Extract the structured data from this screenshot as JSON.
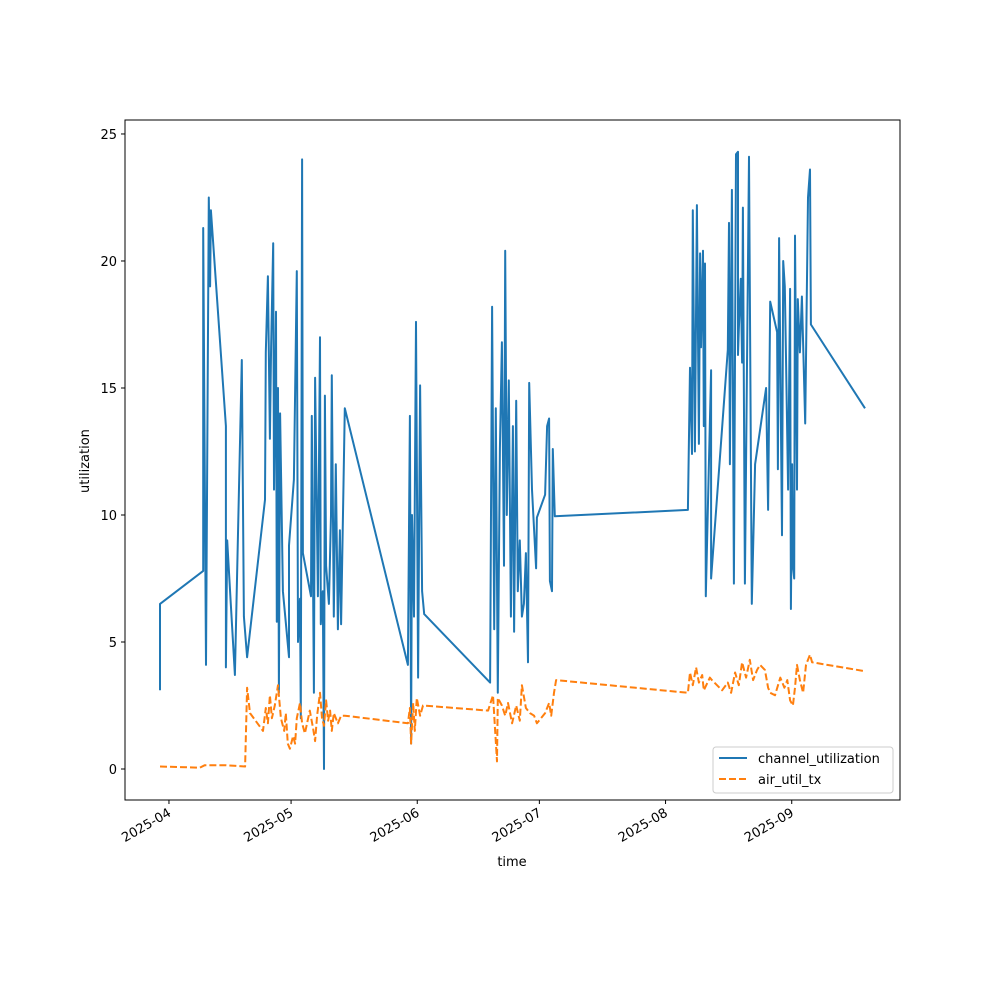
{
  "chart_data": {
    "type": "line",
    "title": "",
    "xlabel": "time",
    "ylabel": "utilization",
    "x_units": "days since 2025-04-01",
    "x_origin": "2025-04-01",
    "xlim": [
      -10.8,
      179.6
    ],
    "ylim": [
      -1.22,
      25.55
    ],
    "grid": false,
    "legend_position": "lower-right",
    "xticks": [
      {
        "label": "2025-04",
        "value": 0
      },
      {
        "label": "2025-05",
        "value": 30
      },
      {
        "label": "2025-06",
        "value": 61
      },
      {
        "label": "2025-07",
        "value": 91
      },
      {
        "label": "2025-08",
        "value": 122
      },
      {
        "label": "2025-09",
        "value": 153
      }
    ],
    "yticks": [
      {
        "label": "0",
        "value": 0
      },
      {
        "label": "5",
        "value": 5
      },
      {
        "label": "10",
        "value": 10
      },
      {
        "label": "15",
        "value": 15
      },
      {
        "label": "20",
        "value": 20
      },
      {
        "label": "25",
        "value": 25
      }
    ],
    "series": [
      {
        "name": "channel_utilization",
        "color": "#1f77b4",
        "style": "solid",
        "x": [
          -2.2,
          -2.2,
          8.4,
          8.4,
          9.1,
          9.8,
          10.1,
          10.3,
          14.0,
          14.0,
          14.3,
          15.2,
          16.2,
          17.9,
          18.4,
          19.2,
          23.6,
          23.8,
          24.3,
          24.8,
          25.1,
          25.6,
          25.8,
          26.3,
          26.5,
          26.8,
          27.0,
          27.3,
          28.0,
          29.5,
          29.5,
          30.7,
          31.4,
          31.7,
          32.2,
          32.4,
          32.7,
          32.9,
          34.9,
          35.1,
          35.6,
          35.9,
          36.6,
          37.1,
          37.3,
          37.8,
          38.1,
          38.3,
          38.6,
          39.3,
          39.8,
          40.0,
          40.5,
          41.0,
          41.5,
          42.0,
          42.3,
          43.2,
          58.7,
          59.2,
          59.5,
          59.7,
          60.2,
          60.7,
          61.2,
          61.7,
          62.2,
          62.7,
          78.9,
          79.4,
          79.9,
          80.3,
          80.8,
          81.3,
          81.8,
          82.3,
          82.6,
          83.0,
          83.5,
          84.0,
          84.5,
          84.8,
          85.3,
          85.7,
          86.2,
          86.7,
          87.2,
          87.7,
          88.2,
          88.5,
          89.2,
          90.2,
          90.4,
          92.4,
          92.9,
          93.4,
          93.6,
          94.1,
          94.3,
          94.8,
          127.5,
          128.0,
          128.5,
          128.7,
          129.2,
          129.7,
          130.2,
          130.5,
          130.7,
          131.2,
          131.4,
          131.7,
          131.9,
          133.2,
          133.2,
          137.3,
          137.6,
          137.8,
          138.3,
          138.8,
          139.3,
          139.8,
          139.8,
          140.0,
          140.5,
          140.8,
          141.0,
          141.5,
          142.5,
          143.2,
          144.0,
          146.7,
          147.2,
          147.7,
          149.4,
          149.6,
          149.9,
          150.6,
          150.9,
          151.3,
          151.6,
          152.1,
          152.6,
          152.8,
          153.1,
          153.3,
          153.6,
          153.8,
          154.3,
          154.5,
          155.0,
          155.5,
          156.3,
          157.0,
          157.5,
          157.7,
          171.0
        ],
        "y": [
          3.1,
          6.5,
          7.8,
          21.3,
          4.1,
          22.5,
          19,
          22,
          13.5,
          4,
          9,
          6.5,
          3.7,
          16.1,
          6,
          4.4,
          10.6,
          16.4,
          19.4,
          13,
          16.6,
          20.7,
          11,
          18,
          5.8,
          15,
          3,
          14,
          7,
          4.4,
          8.8,
          11.4,
          19.6,
          5,
          6.7,
          2,
          24,
          8.5,
          6.8,
          13.9,
          3,
          15.4,
          6.8,
          17,
          5.7,
          7,
          0,
          14.7,
          8,
          6.5,
          10,
          15.5,
          6,
          12,
          5.5,
          9.4,
          5.7,
          14.2,
          4.1,
          13.9,
          1,
          10,
          6,
          17.6,
          3.6,
          15.1,
          7,
          6.1,
          3.4,
          18.2,
          5.5,
          14.2,
          3,
          12.6,
          16.8,
          8,
          20.4,
          10,
          15.3,
          6,
          13.5,
          5.4,
          14.5,
          7,
          9,
          6,
          6.5,
          8.5,
          4.2,
          15.2,
          11,
          7.9,
          9.9,
          10.8,
          13.5,
          13.8,
          7.4,
          7,
          12.6,
          9.95,
          10.2,
          15.8,
          12.4,
          22,
          12.5,
          22.2,
          12.8,
          20.3,
          16.6,
          20.4,
          13.5,
          19.9,
          6.8,
          15.7,
          7.5,
          16.5,
          21.5,
          12,
          22.8,
          7.3,
          24.2,
          24.3,
          16.3,
          17.3,
          19.3,
          16,
          22.1,
          7.3,
          24.1,
          6.5,
          12,
          15,
          10.2,
          18.4,
          17.2,
          11.8,
          20.9,
          9.2,
          20,
          19,
          16.2,
          11,
          18.9,
          6.3,
          12,
          8,
          7.5,
          21,
          11,
          18.5,
          16.4,
          18.6,
          13.6,
          22.5,
          23.6,
          17.5,
          14.2
        ]
      },
      {
        "name": "air_util_tx",
        "color": "#ff7f0e",
        "style": "dashed",
        "x": [
          -2.2,
          7.6,
          8.8,
          13.8,
          18.7,
          19.2,
          19.9,
          23.1,
          23.8,
          24.3,
          24.8,
          25.3,
          26.0,
          26.8,
          27.5,
          28.3,
          28.7,
          29.2,
          29.7,
          30.5,
          31.0,
          31.4,
          32.2,
          32.7,
          33.4,
          34.6,
          35.4,
          35.9,
          36.4,
          37.1,
          37.6,
          38.1,
          38.6,
          39.1,
          39.6,
          40.0,
          40.5,
          41.5,
          42.3,
          43.2,
          58.7,
          59.2,
          59.5,
          60.0,
          60.4,
          60.9,
          61.7,
          62.4,
          78.4,
          79.6,
          80.6,
          80.8,
          81.8,
          82.6,
          83.3,
          84.3,
          85.3,
          86.2,
          86.7,
          87.7,
          88.7,
          89.7,
          90.4,
          92.4,
          93.4,
          93.9,
          94.6,
          95.1,
          127.5,
          128.0,
          128.7,
          129.5,
          130.2,
          131.0,
          131.4,
          132.9,
          133.4,
          135.9,
          137.3,
          138.1,
          139.1,
          140.0,
          140.8,
          141.8,
          142.7,
          143.5,
          144.5,
          145.2,
          146.4,
          147.2,
          147.7,
          148.9,
          150.2,
          151.2,
          151.9,
          152.6,
          153.3,
          153.8,
          154.3,
          155.0,
          155.8,
          156.5,
          157.5,
          158.0,
          171.0
        ],
        "y": [
          0.1,
          0.05,
          0.15,
          0.15,
          0.1,
          3.2,
          2.2,
          1.5,
          2.4,
          1.8,
          2.9,
          2,
          2.5,
          3.3,
          2,
          1.5,
          2.2,
          1,
          0.8,
          1.3,
          1,
          2,
          2.6,
          1.8,
          1.4,
          2.3,
          1.6,
          1.1,
          2.1,
          3,
          2,
          1.7,
          2.7,
          1.9,
          2.3,
          1.5,
          2.2,
          1.8,
          2.1,
          2.1,
          1.8,
          2.4,
          1,
          2.6,
          1.5,
          2.8,
          2.1,
          2.5,
          2.3,
          2.9,
          0.3,
          2.8,
          2.5,
          2.1,
          2.6,
          1.8,
          2.5,
          1.9,
          3.3,
          2.4,
          2.2,
          2.1,
          1.8,
          2.2,
          2.6,
          2.1,
          3,
          3.5,
          3,
          3.8,
          3.3,
          4,
          3.4,
          3.7,
          3.1,
          3.6,
          3.5,
          3.1,
          3.4,
          3,
          3.8,
          3.3,
          4.2,
          3.6,
          4.3,
          3.5,
          3.9,
          4.1,
          3.9,
          3.2,
          3,
          2.9,
          3.6,
          3.2,
          3.5,
          2.7,
          2.5,
          3.2,
          4.1,
          3.5,
          3,
          4.1,
          4.5,
          4.2,
          3.85
        ]
      }
    ]
  }
}
